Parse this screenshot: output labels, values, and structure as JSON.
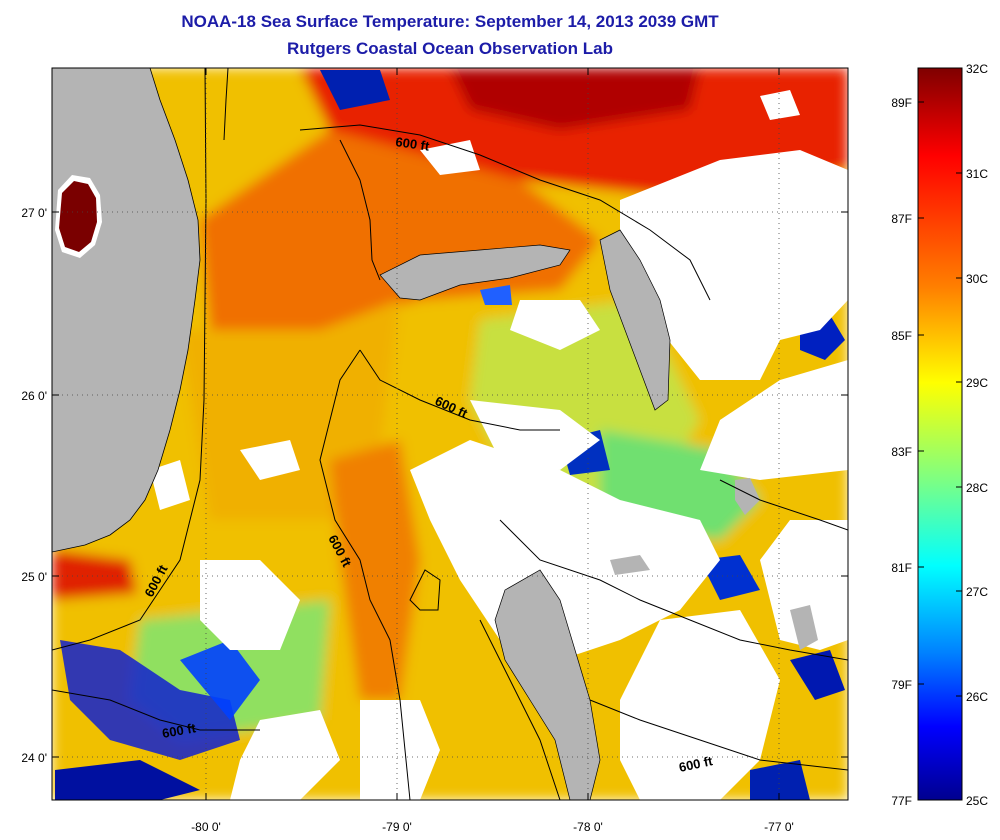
{
  "header": {
    "title": "NOAA-18 Sea Surface Temperature:  September 14, 2013 2039 GMT",
    "subtitle": "Rutgers Coastal Ocean Observation Lab"
  },
  "map": {
    "lat_labels": [
      "27 0'",
      "26 0'",
      "25 0'",
      "24 0'"
    ],
    "lon_labels": [
      "-80 0'",
      "-79 0'",
      "-78 0'",
      "-77 0'"
    ],
    "contour_labels": [
      "600 ft",
      "600 ft",
      "600 ft",
      "600 ft",
      "600 ft",
      "600 ft"
    ],
    "colors": {
      "land": "#b4b4b4",
      "cloud": "#ffffff",
      "contour": "#000000",
      "grid": "#555555"
    }
  },
  "colorbar": {
    "celsius_labels": [
      "32C",
      "31C",
      "30C",
      "29C",
      "28C",
      "27C",
      "26C",
      "25C"
    ],
    "fahrenheit_labels": [
      "89F",
      "87F",
      "85F",
      "83F",
      "81F",
      "79F",
      "77F"
    ],
    "colors": [
      "#7f0000",
      "#ff0000",
      "#ff8000",
      "#ffff00",
      "#80ff80",
      "#00ffff",
      "#0080ff",
      "#0000ff",
      "#00008f"
    ]
  }
}
